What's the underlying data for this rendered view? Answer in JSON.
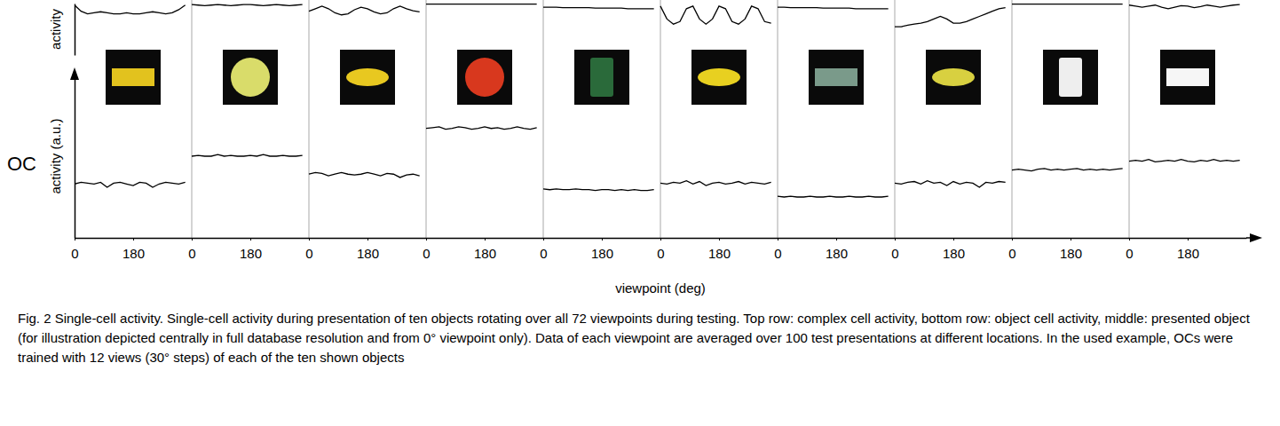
{
  "chart_data": [
    {
      "type": "line",
      "ylabel": "activity",
      "color": "#000000",
      "xlim": [
        0,
        360
      ],
      "ylim": [
        0,
        1
      ],
      "tick_labels": false,
      "x": [
        0,
        20,
        40,
        60,
        80,
        100,
        120,
        140,
        160,
        180,
        200,
        220,
        240,
        260,
        280,
        300,
        320,
        340
      ],
      "series": [
        {
          "values": [
            0.97,
            0.85,
            0.8,
            0.82,
            0.84,
            0.82,
            0.8,
            0.8,
            0.82,
            0.8,
            0.8,
            0.82,
            0.84,
            0.82,
            0.8,
            0.82,
            0.88,
            0.97
          ]
        },
        {
          "values": [
            0.98,
            0.97,
            0.96,
            0.97,
            0.98,
            0.97,
            0.96,
            0.97,
            0.98,
            0.98,
            0.97,
            0.96,
            0.97,
            0.98,
            0.97,
            0.96,
            0.97,
            0.98
          ]
        },
        {
          "values": [
            0.85,
            0.9,
            0.95,
            0.9,
            0.82,
            0.78,
            0.8,
            0.88,
            0.93,
            0.9,
            0.84,
            0.8,
            0.82,
            0.9,
            0.95,
            0.9,
            0.86,
            0.84
          ]
        },
        {
          "values": [
            0.99,
            0.99,
            0.99,
            0.99,
            0.99,
            0.99,
            0.99,
            0.99,
            0.99,
            0.99,
            0.99,
            0.99,
            0.99,
            0.99,
            0.99,
            0.99,
            0.99,
            0.99
          ]
        },
        {
          "values": [
            0.93,
            0.93,
            0.93,
            0.92,
            0.92,
            0.92,
            0.92,
            0.92,
            0.91,
            0.91,
            0.91,
            0.91,
            0.91,
            0.9,
            0.9,
            0.9,
            0.9,
            0.9
          ]
        },
        {
          "values": [
            0.95,
            0.7,
            0.6,
            0.65,
            0.9,
            0.95,
            0.7,
            0.6,
            0.7,
            0.95,
            0.9,
            0.65,
            0.6,
            0.7,
            0.95,
            0.9,
            0.65,
            0.62
          ]
        },
        {
          "values": [
            0.93,
            0.93,
            0.92,
            0.92,
            0.92,
            0.92,
            0.92,
            0.91,
            0.91,
            0.91,
            0.91,
            0.91,
            0.9,
            0.9,
            0.9,
            0.9,
            0.9,
            0.9
          ]
        },
        {
          "values": [
            0.55,
            0.55,
            0.58,
            0.6,
            0.62,
            0.65,
            0.7,
            0.75,
            0.7,
            0.62,
            0.62,
            0.65,
            0.7,
            0.75,
            0.8,
            0.85,
            0.9,
            0.92
          ]
        },
        {
          "values": [
            0.99,
            0.99,
            0.99,
            0.99,
            0.99,
            0.99,
            0.99,
            0.99,
            0.99,
            0.99,
            0.99,
            0.99,
            0.99,
            0.99,
            0.99,
            0.99,
            0.99,
            0.99
          ]
        },
        {
          "values": [
            0.97,
            0.95,
            0.93,
            0.95,
            0.97,
            0.93,
            0.9,
            0.93,
            0.96,
            0.95,
            0.92,
            0.94,
            0.97,
            0.95,
            0.93,
            0.95,
            0.97,
            0.98
          ]
        }
      ]
    },
    {
      "type": "line",
      "title": "OC",
      "ylabel": "activity (a.u.)",
      "xlabel": "viewpoint (deg)",
      "color": "#000000",
      "xlim": [
        0,
        360
      ],
      "xticks": [
        0,
        180
      ],
      "ylim": [
        0,
        1
      ],
      "tick_labels": "x",
      "x": [
        0,
        20,
        40,
        60,
        80,
        100,
        120,
        140,
        160,
        180,
        200,
        220,
        240,
        260,
        280,
        300,
        320,
        340
      ],
      "series": [
        {
          "values": [
            0.33,
            0.34,
            0.335,
            0.33,
            0.34,
            0.31,
            0.335,
            0.34,
            0.33,
            0.32,
            0.34,
            0.335,
            0.31,
            0.33,
            0.34,
            0.335,
            0.33,
            0.34
          ]
        },
        {
          "values": [
            0.5,
            0.505,
            0.5,
            0.5,
            0.51,
            0.5,
            0.505,
            0.5,
            0.5,
            0.505,
            0.5,
            0.51,
            0.5,
            0.5,
            0.505,
            0.5,
            0.5,
            0.505
          ]
        },
        {
          "values": [
            0.39,
            0.4,
            0.395,
            0.38,
            0.39,
            0.4,
            0.39,
            0.385,
            0.39,
            0.4,
            0.39,
            0.38,
            0.395,
            0.39,
            0.37,
            0.385,
            0.39,
            0.38
          ]
        },
        {
          "values": [
            0.67,
            0.675,
            0.68,
            0.665,
            0.67,
            0.68,
            0.675,
            0.665,
            0.67,
            0.68,
            0.67,
            0.675,
            0.665,
            0.67,
            0.68,
            0.67,
            0.665,
            0.675
          ]
        },
        {
          "values": [
            0.3,
            0.295,
            0.3,
            0.295,
            0.295,
            0.3,
            0.295,
            0.295,
            0.29,
            0.295,
            0.295,
            0.29,
            0.295,
            0.29,
            0.295,
            0.29,
            0.29,
            0.295
          ]
        },
        {
          "values": [
            0.335,
            0.33,
            0.34,
            0.335,
            0.35,
            0.33,
            0.345,
            0.32,
            0.335,
            0.34,
            0.33,
            0.335,
            0.345,
            0.33,
            0.34,
            0.335,
            0.33,
            0.34
          ]
        },
        {
          "values": [
            0.255,
            0.25,
            0.255,
            0.25,
            0.25,
            0.255,
            0.25,
            0.25,
            0.255,
            0.25,
            0.25,
            0.255,
            0.25,
            0.25,
            0.255,
            0.25,
            0.25,
            0.255
          ]
        },
        {
          "values": [
            0.335,
            0.33,
            0.34,
            0.345,
            0.33,
            0.35,
            0.335,
            0.34,
            0.32,
            0.345,
            0.33,
            0.34,
            0.335,
            0.31,
            0.34,
            0.335,
            0.345,
            0.34
          ]
        },
        {
          "values": [
            0.415,
            0.42,
            0.415,
            0.41,
            0.42,
            0.425,
            0.415,
            0.42,
            0.415,
            0.42,
            0.425,
            0.415,
            0.42,
            0.415,
            0.42,
            0.415,
            0.42,
            0.425
          ]
        },
        {
          "values": [
            0.47,
            0.475,
            0.47,
            0.48,
            0.465,
            0.47,
            0.475,
            0.47,
            0.48,
            0.47,
            0.465,
            0.475,
            0.47,
            0.48,
            0.47,
            0.475,
            0.47,
            0.475
          ]
        }
      ]
    }
  ],
  "caption": "Fig. 2 Single-cell activity. Single-cell activity during presentation of ten objects rotating over all 72 viewpoints during testing. Top row: complex cell activity, bottom row: object cell activity, middle: presented object (for illustration depicted centrally in full database resolution and from 0° viewpoint only). Data of each viewpoint are averaged over 100 test presentations at different locations. In the used example, OCs were trained with 12 views (30° steps) of each of the ten shown objects"
}
